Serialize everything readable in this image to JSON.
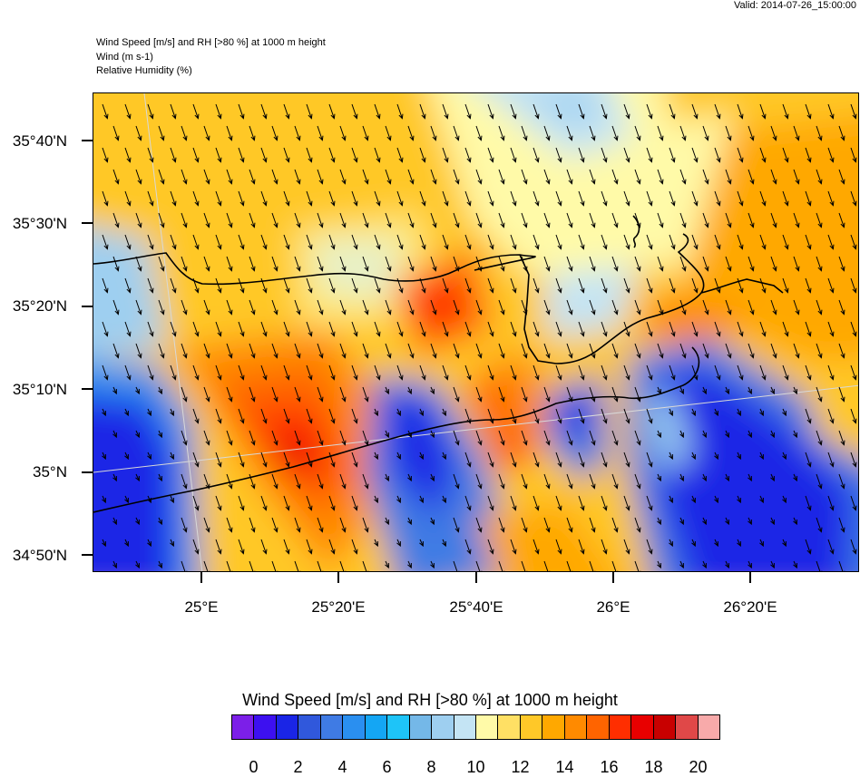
{
  "valid": "Valid: 2014-07-26_15:00:00",
  "header": {
    "line1": "Wind Speed [m/s] and RH [>80 %] at 1000 m height",
    "line2": "Wind   (m s-1)",
    "line3": "Relative Humidity   (%)"
  },
  "lat_labels": [
    "35°40'N",
    "35°30'N",
    "35°20'N",
    "35°10'N",
    "35°N",
    "34°50'N"
  ],
  "lon_labels": [
    "25°E",
    "25°20'E",
    "25°40'E",
    "26°E",
    "26°20'E"
  ],
  "colorbar": {
    "title": "Wind Speed [m/s] and RH [>80 %] at 1000 m height",
    "labels": [
      "0",
      "2",
      "4",
      "6",
      "8",
      "10",
      "12",
      "14",
      "16",
      "18",
      "20"
    ],
    "colors": [
      "#7c1fe8",
      "#3d10f0",
      "#1a25e6",
      "#3058dc",
      "#3f7be4",
      "#2a8ff0",
      "#14a6f4",
      "#1ec4f8",
      "#74b8e8",
      "#9ecff0",
      "#c4e4f4",
      "#fffaa8",
      "#ffe064",
      "#ffc828",
      "#ffa800",
      "#ff8a00",
      "#ff6400",
      "#ff2e00",
      "#e80000",
      "#c80000",
      "#e04848",
      "#f8aaaa"
    ]
  }
}
